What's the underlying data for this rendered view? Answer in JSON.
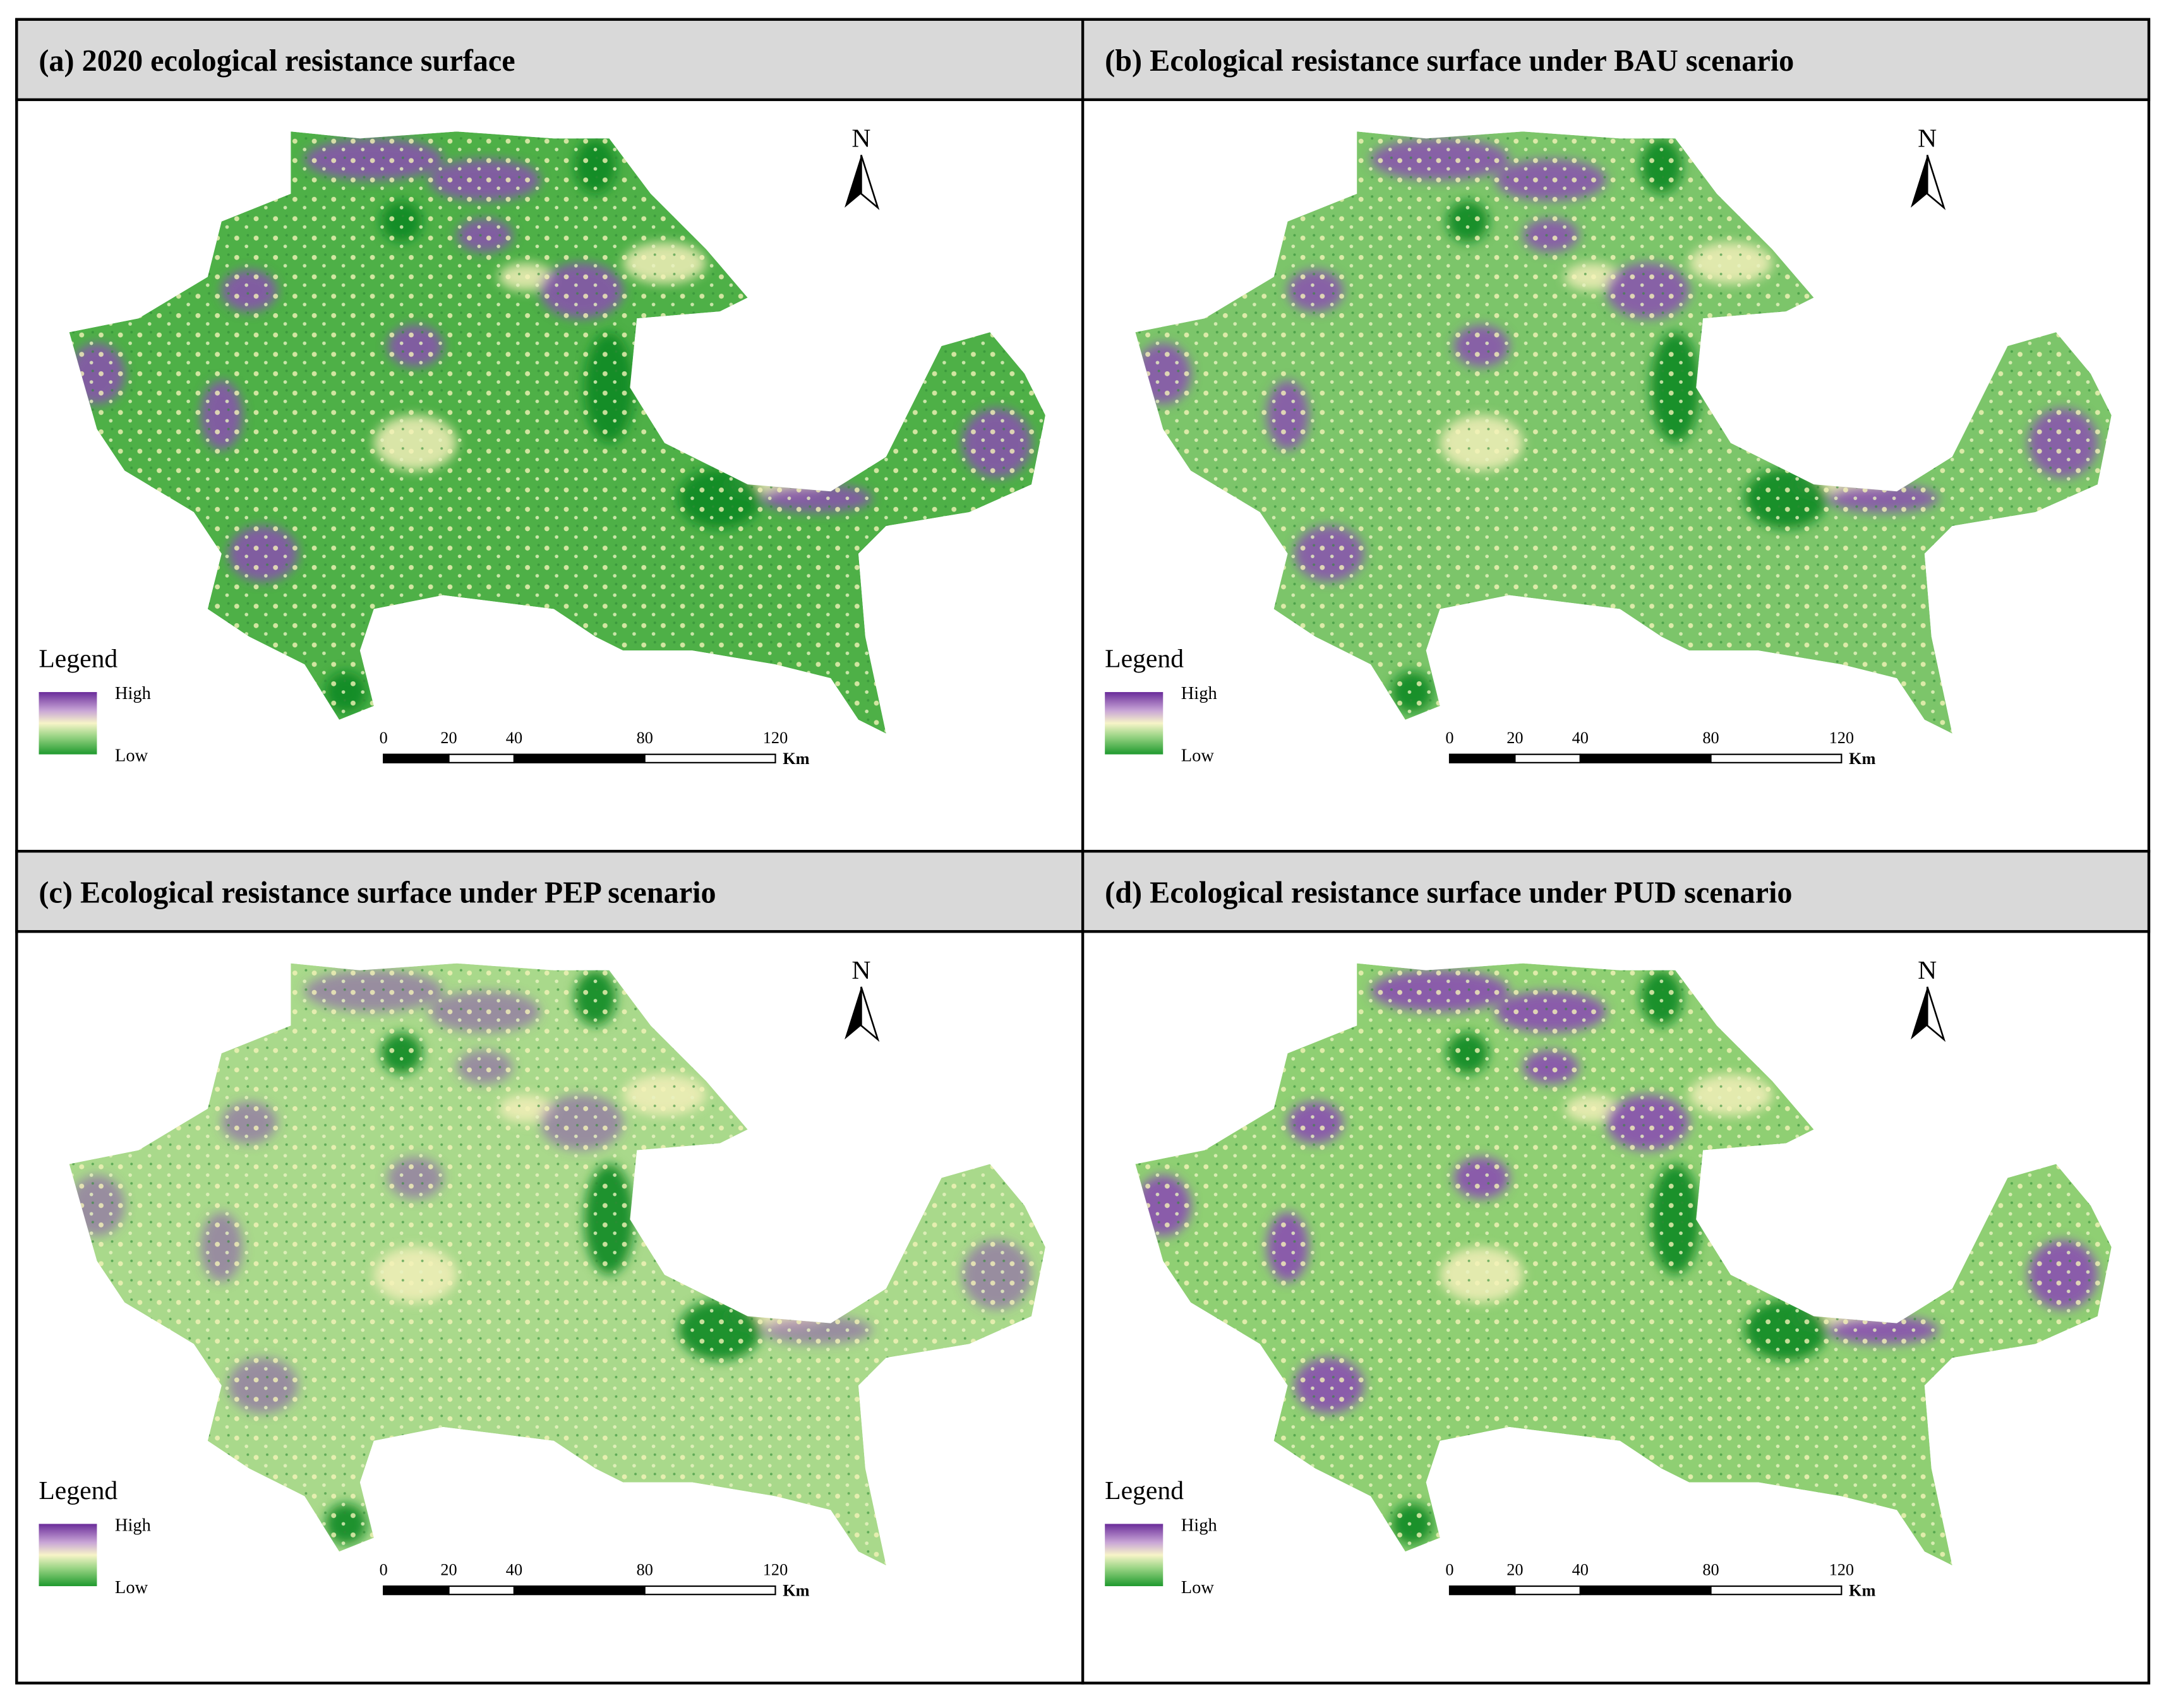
{
  "panels": [
    {
      "title": "(a) 2020 ecological resistance surface",
      "north": "N",
      "legend": {
        "title": "Legend",
        "high": "High",
        "low": "Low"
      },
      "scale": {
        "ticks": [
          0,
          20,
          40,
          80,
          120
        ],
        "unit": "Km"
      }
    },
    {
      "title": "(b) Ecological resistance surface under BAU scenario",
      "north": "N",
      "legend": {
        "title": "Legend",
        "high": "High",
        "low": "Low"
      },
      "scale": {
        "ticks": [
          0,
          20,
          40,
          80,
          120
        ],
        "unit": "Km"
      }
    },
    {
      "title": "(c) Ecological resistance surface under PEP scenario",
      "north": "N",
      "legend": {
        "title": "Legend",
        "high": "High",
        "low": "Low"
      },
      "scale": {
        "ticks": [
          0,
          20,
          40,
          80,
          120
        ],
        "unit": "Km"
      }
    },
    {
      "title": "(d) Ecological resistance surface under PUD scenario",
      "north": "N",
      "legend": {
        "title": "Legend",
        "high": "High",
        "low": "Low"
      },
      "scale": {
        "ticks": [
          0,
          20,
          40,
          80,
          120
        ],
        "unit": "Km"
      }
    }
  ]
}
